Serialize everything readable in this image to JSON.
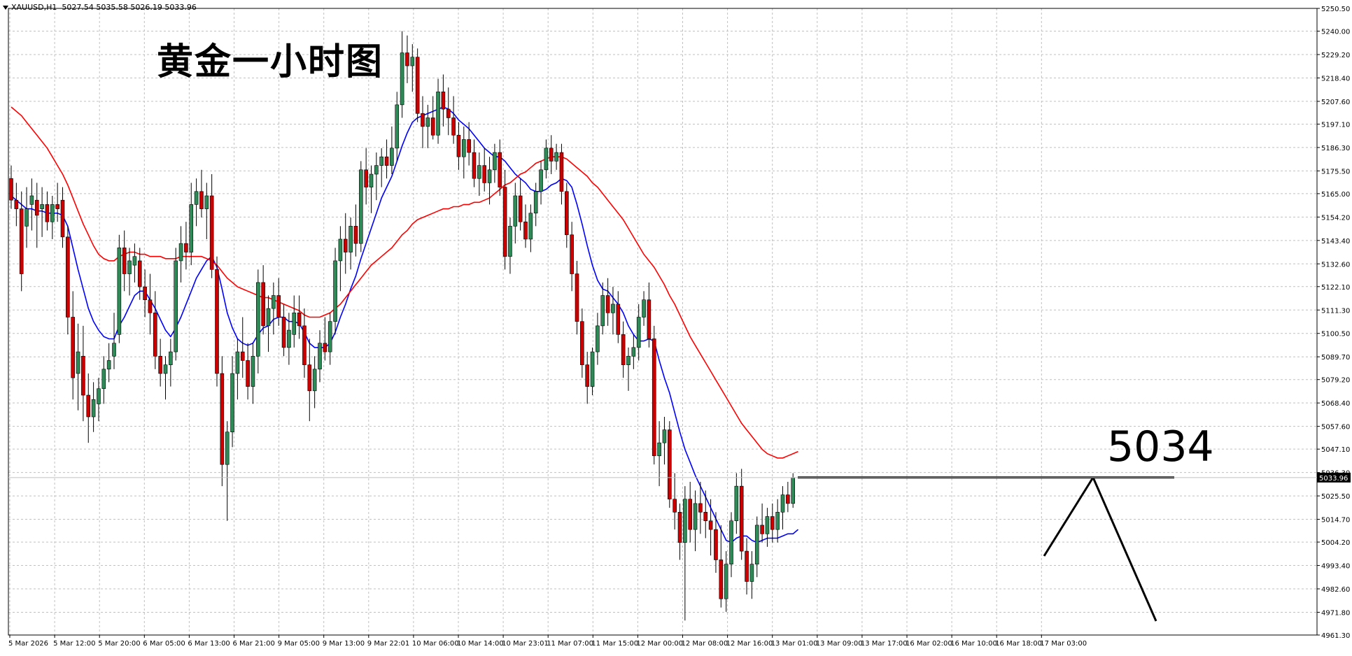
{
  "header": {
    "symbol": "XAUUSD,H1",
    "ohlc": "5027.54 5035.58 5026.19 5033.96"
  },
  "title": "黄金一小时图",
  "annotation": "5034",
  "colors": {
    "bull": "#2e8b57",
    "bear": "#cc0000",
    "ma_fast": "#0000ff",
    "ma_slow": "#ff0000",
    "grid": "#c0c0c0",
    "line": "#000000"
  },
  "chart_data": {
    "type": "candlestick",
    "title": "黄金一小时图",
    "xlabel": "",
    "ylabel": "",
    "ylim": [
      4961.3,
      5250.5
    ],
    "y_ticks": [
      "5250.50",
      "5240.00",
      "5229.20",
      "5218.40",
      "5207.60",
      "5197.10",
      "5186.30",
      "5175.50",
      "5165.00",
      "5154.20",
      "5143.40",
      "5132.60",
      "5122.10",
      "5111.30",
      "5100.50",
      "5089.70",
      "5079.20",
      "5068.40",
      "5057.60",
      "5047.10",
      "5036.30",
      "5025.50",
      "5014.70",
      "5004.20",
      "4993.40",
      "4982.60",
      "4971.80",
      "4961.30"
    ],
    "x_ticks": [
      "5 Mar 2026",
      "5 Mar 12:00",
      "5 Mar 20:00",
      "6 Mar 05:00",
      "6 Mar 13:00",
      "6 Mar 21:00",
      "9 Mar 05:00",
      "9 Mar 13:00",
      "9 Mar 22:01",
      "10 Mar 06:00",
      "10 Mar 14:00",
      "10 Mar 23:01",
      "11 Mar 07:00",
      "11 Mar 15:00",
      "12 Mar 00:00",
      "12 Mar 08:00",
      "12 Mar 16:00",
      "13 Mar 01:00",
      "13 Mar 09:00",
      "13 Mar 17:00",
      "16 Mar 02:00",
      "16 Mar 10:00",
      "16 Mar 18:00",
      "17 Mar 03:00"
    ],
    "current_price": "5033.96",
    "key_level": 5034,
    "candles": [
      [
        5172,
        5178,
        5158,
        5162
      ],
      [
        5162,
        5170,
        5150,
        5158
      ],
      [
        5158,
        5166,
        5120,
        5128
      ],
      [
        5150,
        5168,
        5140,
        5158
      ],
      [
        5160,
        5172,
        5148,
        5164
      ],
      [
        5162,
        5170,
        5140,
        5155
      ],
      [
        5158,
        5168,
        5145,
        5160
      ],
      [
        5160,
        5166,
        5148,
        5152
      ],
      [
        5152,
        5164,
        5144,
        5160
      ],
      [
        5160,
        5170,
        5152,
        5158
      ],
      [
        5162,
        5168,
        5140,
        5145
      ],
      [
        5145,
        5150,
        5100,
        5108
      ],
      [
        5108,
        5120,
        5070,
        5080
      ],
      [
        5082,
        5105,
        5065,
        5092
      ],
      [
        5090,
        5104,
        5060,
        5072
      ],
      [
        5072,
        5082,
        5050,
        5062
      ],
      [
        5062,
        5078,
        5055,
        5070
      ],
      [
        5068,
        5080,
        5060,
        5075
      ],
      [
        5075,
        5090,
        5068,
        5084
      ],
      [
        5084,
        5096,
        5078,
        5088
      ],
      [
        5090,
        5110,
        5084,
        5096
      ],
      [
        5100,
        5146,
        5096,
        5140
      ],
      [
        5140,
        5148,
        5120,
        5128
      ],
      [
        5128,
        5140,
        5118,
        5134
      ],
      [
        5132,
        5142,
        5124,
        5136
      ],
      [
        5134,
        5140,
        5116,
        5122
      ],
      [
        5122,
        5130,
        5108,
        5116
      ],
      [
        5116,
        5128,
        5100,
        5110
      ],
      [
        5110,
        5120,
        5084,
        5090
      ],
      [
        5090,
        5098,
        5076,
        5082
      ],
      [
        5082,
        5090,
        5070,
        5086
      ],
      [
        5086,
        5098,
        5076,
        5092
      ],
      [
        5092,
        5140,
        5088,
        5134
      ],
      [
        5134,
        5150,
        5124,
        5142
      ],
      [
        5142,
        5152,
        5130,
        5138
      ],
      [
        5138,
        5170,
        5132,
        5160
      ],
      [
        5160,
        5172,
        5150,
        5166
      ],
      [
        5166,
        5176,
        5154,
        5158
      ],
      [
        5158,
        5170,
        5144,
        5164
      ],
      [
        5164,
        5174,
        5126,
        5130
      ],
      [
        5130,
        5136,
        5076,
        5082
      ],
      [
        5082,
        5090,
        5030,
        5040
      ],
      [
        5040,
        5060,
        5014,
        5055
      ],
      [
        5055,
        5090,
        5048,
        5082
      ],
      [
        5082,
        5098,
        5070,
        5092
      ],
      [
        5092,
        5108,
        5080,
        5088
      ],
      [
        5088,
        5096,
        5070,
        5076
      ],
      [
        5076,
        5096,
        5068,
        5090
      ],
      [
        5090,
        5130,
        5082,
        5124
      ],
      [
        5124,
        5132,
        5100,
        5104
      ],
      [
        5104,
        5118,
        5092,
        5112
      ],
      [
        5112,
        5124,
        5100,
        5118
      ],
      [
        5118,
        5126,
        5104,
        5108
      ],
      [
        5108,
        5114,
        5090,
        5094
      ],
      [
        5094,
        5110,
        5086,
        5102
      ],
      [
        5100,
        5118,
        5094,
        5110
      ],
      [
        5110,
        5118,
        5098,
        5104
      ],
      [
        5104,
        5112,
        5080,
        5086
      ],
      [
        5086,
        5098,
        5060,
        5074
      ],
      [
        5074,
        5090,
        5066,
        5084
      ],
      [
        5084,
        5102,
        5078,
        5096
      ],
      [
        5096,
        5108,
        5088,
        5092
      ],
      [
        5092,
        5110,
        5086,
        5106
      ],
      [
        5106,
        5140,
        5100,
        5134
      ],
      [
        5134,
        5150,
        5120,
        5144
      ],
      [
        5144,
        5156,
        5128,
        5138
      ],
      [
        5138,
        5154,
        5130,
        5150
      ],
      [
        5150,
        5160,
        5136,
        5142
      ],
      [
        5142,
        5180,
        5138,
        5176
      ],
      [
        5176,
        5186,
        5160,
        5168
      ],
      [
        5168,
        5178,
        5156,
        5174
      ],
      [
        5174,
        5184,
        5162,
        5178
      ],
      [
        5178,
        5186,
        5168,
        5182
      ],
      [
        5182,
        5190,
        5172,
        5178
      ],
      [
        5178,
        5196,
        5174,
        5186
      ],
      [
        5186,
        5212,
        5180,
        5206
      ],
      [
        5206,
        5240,
        5200,
        5230
      ],
      [
        5230,
        5238,
        5216,
        5224
      ],
      [
        5224,
        5234,
        5212,
        5228
      ],
      [
        5228,
        5232,
        5198,
        5202
      ],
      [
        5202,
        5210,
        5186,
        5196
      ],
      [
        5196,
        5206,
        5186,
        5200
      ],
      [
        5200,
        5210,
        5190,
        5192
      ],
      [
        5192,
        5218,
        5188,
        5212
      ],
      [
        5212,
        5220,
        5196,
        5204
      ],
      [
        5204,
        5214,
        5192,
        5200
      ],
      [
        5200,
        5210,
        5188,
        5192
      ],
      [
        5192,
        5198,
        5176,
        5182
      ],
      [
        5182,
        5196,
        5172,
        5190
      ],
      [
        5190,
        5198,
        5178,
        5184
      ],
      [
        5184,
        5190,
        5168,
        5172
      ],
      [
        5172,
        5184,
        5164,
        5178
      ],
      [
        5178,
        5186,
        5166,
        5170
      ],
      [
        5170,
        5182,
        5160,
        5176
      ],
      [
        5176,
        5188,
        5170,
        5184
      ],
      [
        5184,
        5190,
        5164,
        5168
      ],
      [
        5168,
        5176,
        5130,
        5136
      ],
      [
        5136,
        5154,
        5128,
        5150
      ],
      [
        5150,
        5170,
        5142,
        5164
      ],
      [
        5164,
        5172,
        5148,
        5152
      ],
      [
        5152,
        5160,
        5140,
        5144
      ],
      [
        5144,
        5160,
        5138,
        5156
      ],
      [
        5156,
        5170,
        5150,
        5166
      ],
      [
        5166,
        5180,
        5160,
        5176
      ],
      [
        5176,
        5190,
        5172,
        5186
      ],
      [
        5186,
        5192,
        5174,
        5180
      ],
      [
        5180,
        5188,
        5176,
        5184
      ],
      [
        5184,
        5188,
        5160,
        5166
      ],
      [
        5166,
        5170,
        5140,
        5146
      ],
      [
        5146,
        5152,
        5120,
        5128
      ],
      [
        5128,
        5134,
        5100,
        5106
      ],
      [
        5106,
        5112,
        5080,
        5086
      ],
      [
        5086,
        5092,
        5068,
        5076
      ],
      [
        5076,
        5094,
        5072,
        5092
      ],
      [
        5092,
        5110,
        5086,
        5104
      ],
      [
        5104,
        5124,
        5100,
        5118
      ],
      [
        5118,
        5126,
        5104,
        5110
      ],
      [
        5110,
        5122,
        5100,
        5114
      ],
      [
        5114,
        5120,
        5096,
        5100
      ],
      [
        5100,
        5106,
        5080,
        5086
      ],
      [
        5086,
        5094,
        5074,
        5090
      ],
      [
        5090,
        5100,
        5084,
        5094
      ],
      [
        5094,
        5114,
        5088,
        5108
      ],
      [
        5108,
        5120,
        5104,
        5116
      ],
      [
        5116,
        5124,
        5094,
        5098
      ],
      [
        5098,
        5104,
        5040,
        5044
      ],
      [
        5044,
        5060,
        5030,
        5050
      ],
      [
        5050,
        5062,
        5040,
        5056
      ],
      [
        5056,
        5060,
        5020,
        5024
      ],
      [
        5024,
        5036,
        5010,
        5018
      ],
      [
        5018,
        5022,
        4996,
        5004
      ],
      [
        5004,
        5030,
        4968,
        5024
      ],
      [
        5024,
        5032,
        5004,
        5010
      ],
      [
        5010,
        5028,
        5000,
        5022
      ],
      [
        5022,
        5032,
        5008,
        5018
      ],
      [
        5018,
        5028,
        5006,
        5014
      ],
      [
        5014,
        5024,
        4998,
        5010
      ],
      [
        5010,
        5018,
        4990,
        4996
      ],
      [
        4996,
        5012,
        4974,
        4978
      ],
      [
        4978,
        5000,
        4972,
        4994
      ],
      [
        4994,
        5018,
        4988,
        5014
      ],
      [
        5014,
        5036,
        5008,
        5030
      ],
      [
        5030,
        5038,
        4996,
        5000
      ],
      [
        5000,
        5006,
        4980,
        4986
      ],
      [
        4986,
        5000,
        4978,
        4994
      ],
      [
        4994,
        5016,
        4988,
        5012
      ],
      [
        5012,
        5022,
        5004,
        5008
      ],
      [
        5008,
        5020,
        5002,
        5016
      ],
      [
        5016,
        5022,
        5004,
        5010
      ],
      [
        5010,
        5024,
        5004,
        5018
      ],
      [
        5018,
        5030,
        5010,
        5026
      ],
      [
        5026,
        5032,
        5018,
        5022
      ],
      [
        5022,
        5036,
        5020,
        5034
      ]
    ],
    "series": [
      {
        "name": "",
        "kind": "ma_fast",
        "values": [
          5164,
          5162,
          5160,
          5158,
          5158,
          5157,
          5157,
          5156,
          5156,
          5156,
          5155,
          5150,
          5140,
          5130,
          5121,
          5112,
          5106,
          5102,
          5099,
          5098,
          5098,
          5104,
          5108,
          5113,
          5118,
          5120,
          5120,
          5116,
          5112,
          5107,
          5102,
          5099,
          5103,
          5108,
          5114,
          5120,
          5126,
          5130,
          5134,
          5136,
          5131,
          5121,
          5110,
          5103,
          5098,
          5096,
          5095,
          5096,
          5100,
          5103,
          5104,
          5107,
          5108,
          5108,
          5106,
          5106,
          5105,
          5101,
          5096,
          5094,
          5094,
          5094,
          5096,
          5101,
          5108,
          5114,
          5121,
          5127,
          5135,
          5142,
          5149,
          5156,
          5163,
          5168,
          5173,
          5180,
          5187,
          5193,
          5198,
          5200,
          5201,
          5202,
          5203,
          5204,
          5205,
          5204,
          5202,
          5199,
          5197,
          5195,
          5192,
          5189,
          5186,
          5184,
          5182,
          5182,
          5180,
          5177,
          5174,
          5172,
          5170,
          5167,
          5166,
          5166,
          5167,
          5169,
          5170,
          5172,
          5171,
          5168,
          5160,
          5151,
          5141,
          5132,
          5125,
          5121,
          5120,
          5117,
          5114,
          5110,
          5104,
          5100,
          5097,
          5097,
          5098,
          5097,
          5088,
          5080,
          5073,
          5064,
          5055,
          5047,
          5041,
          5035,
          5030,
          5025,
          5020,
          5015,
          5010,
          5005,
          5004,
          5006,
          5007,
          5007,
          5005,
          5004,
          5005,
          5006,
          5006,
          5006,
          5007,
          5008,
          5008,
          5010
        ]
      },
      {
        "name": "",
        "kind": "ma_slow",
        "values": [
          5205,
          5203,
          5201,
          5198,
          5195,
          5192,
          5189,
          5186,
          5182,
          5178,
          5174,
          5169,
          5163,
          5157,
          5151,
          5146,
          5141,
          5137,
          5135,
          5134,
          5134,
          5136,
          5137,
          5138,
          5138,
          5137,
          5137,
          5136,
          5136,
          5136,
          5135,
          5135,
          5135,
          5136,
          5136,
          5136,
          5136,
          5136,
          5135,
          5134,
          5132,
          5129,
          5126,
          5124,
          5122,
          5121,
          5120,
          5119,
          5118,
          5117,
          5117,
          5116,
          5115,
          5114,
          5113,
          5112,
          5111,
          5109,
          5108,
          5108,
          5108,
          5109,
          5110,
          5112,
          5114,
          5117,
          5120,
          5123,
          5126,
          5129,
          5132,
          5134,
          5136,
          5138,
          5140,
          5143,
          5146,
          5148,
          5151,
          5153,
          5154,
          5155,
          5156,
          5157,
          5158,
          5158,
          5159,
          5159,
          5160,
          5160,
          5161,
          5161,
          5162,
          5163,
          5165,
          5167,
          5169,
          5170,
          5172,
          5174,
          5175,
          5177,
          5179,
          5180,
          5181,
          5182,
          5182,
          5182,
          5181,
          5179,
          5177,
          5175,
          5173,
          5170,
          5168,
          5165,
          5162,
          5159,
          5156,
          5153,
          5149,
          5145,
          5141,
          5137,
          5134,
          5131,
          5127,
          5123,
          5118,
          5114,
          5109,
          5104,
          5099,
          5095,
          5091,
          5087,
          5083,
          5079,
          5075,
          5071,
          5067,
          5063,
          5059,
          5056,
          5053,
          5050,
          5047,
          5045,
          5044,
          5043,
          5043,
          5044,
          5045,
          5046
        ]
      }
    ]
  }
}
